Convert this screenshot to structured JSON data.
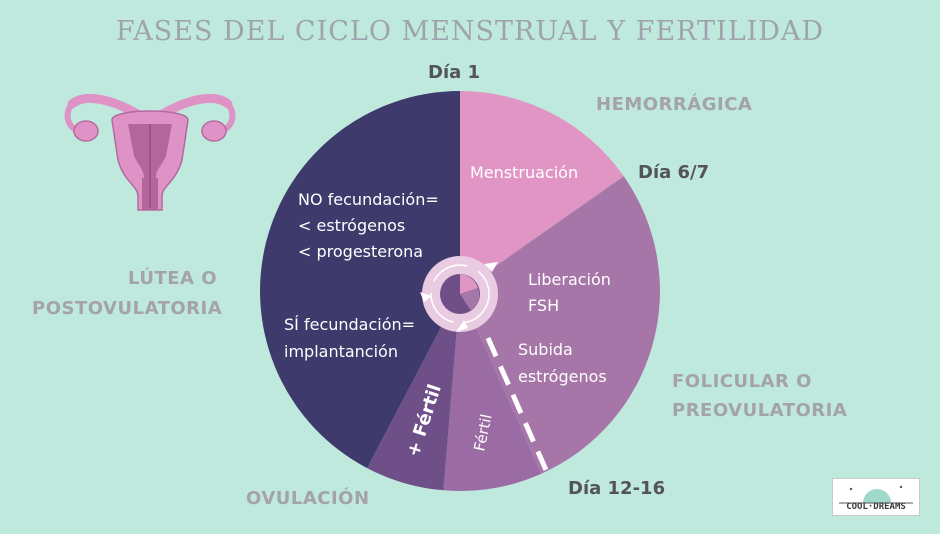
{
  "title": "FASES DEL CICLO MENSTRUAL Y FERTILIDAD",
  "phases": {
    "hemorragica": "HEMORRÁGICA",
    "lutea_line1": "LÚTEA O",
    "lutea_line2": "POSTOVULATORIA",
    "folicular_line1": "FOLICULAR O",
    "folicular_line2": "PREOVULATORIA",
    "ovulacion": "OVULACIÓN"
  },
  "days": {
    "day1": "Día 1",
    "day6_7": "Día 6/7",
    "day12_16": "Día 12-16"
  },
  "segments": {
    "menstruacion": "Menstruación",
    "liberacion_line1": "Liberación",
    "liberacion_line2": "FSH",
    "subida_line1": "Subida",
    "subida_line2": "estrógenos",
    "fertil": "Fértil",
    "mas_fertil": "+ Fértil",
    "no_fec_line1": "NO fecundación=",
    "no_fec_line2": "< estrógenos",
    "no_fec_line3": "< progesterona",
    "si_fec_line1": "SÍ fecundación=",
    "si_fec_line2": "implantanción"
  },
  "logo": {
    "text": "COOL·DREAMS"
  },
  "colors": {
    "background": "#bfe9dc",
    "menstrual": "#e195c4",
    "follicular": "#a776a9",
    "fertile": "#9b6ba4",
    "most_fertile": "#6f4f87",
    "luteal": "#3e3a6b",
    "uterus": "#de92c5"
  }
}
